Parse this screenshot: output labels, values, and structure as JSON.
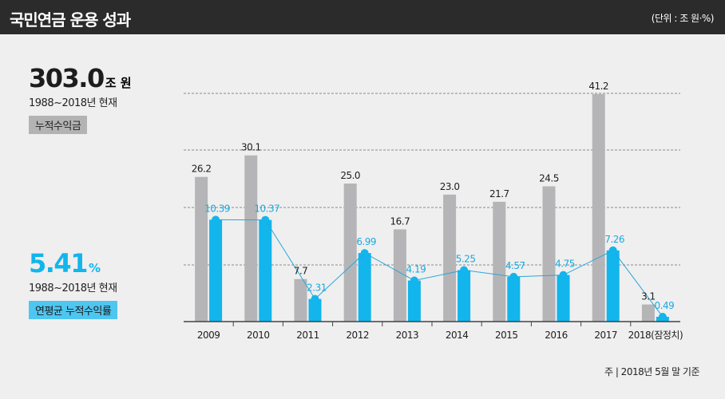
{
  "header": {
    "title": "국민연금 운용 성과",
    "unit": "(단위 : 조 원·%)"
  },
  "stat_total": {
    "value": "303.0",
    "unit": "조 원",
    "period": "1988~2018년 현재",
    "tag": "누적수익금"
  },
  "stat_rate": {
    "value": "5.41",
    "unit": "%",
    "period": "1988~2018년 현재",
    "tag": "연평균 누적수익률"
  },
  "footnote": "주 | 2018년 5월 말 기준",
  "colors": {
    "bar_gray": "#b5b5b7",
    "bar_blue": "#12b5ec",
    "line": "#2aa6da"
  },
  "chart_data": {
    "type": "bar",
    "categories": [
      "2009",
      "2010",
      "2011",
      "2012",
      "2013",
      "2014",
      "2015",
      "2016",
      "2017",
      "2018(잠정치)"
    ],
    "series": [
      {
        "name": "누적수익금 (조 원)",
        "values": [
          26.2,
          30.1,
          7.7,
          25.0,
          16.7,
          23.0,
          21.7,
          24.5,
          41.2,
          3.1
        ],
        "labels": [
          "26.2",
          "30.1",
          "7.7",
          "25.0",
          "16.7",
          "23.0",
          "21.7",
          "24.5",
          "41.2",
          "3.1"
        ]
      },
      {
        "name": "수익률 (%)",
        "values": [
          10.39,
          10.37,
          2.31,
          6.99,
          4.19,
          5.25,
          4.57,
          4.75,
          7.26,
          0.49
        ],
        "labels": [
          "10.39",
          "10.37",
          "2.31",
          "6.99",
          "4.19",
          "5.25",
          "4.57",
          "4.75",
          "7.26",
          "0.49"
        ],
        "overlay": "line"
      }
    ],
    "gray_ylim": [
      0,
      43.5
    ],
    "blue_ylim": [
      0,
      24.5
    ],
    "grid": "dashed"
  }
}
